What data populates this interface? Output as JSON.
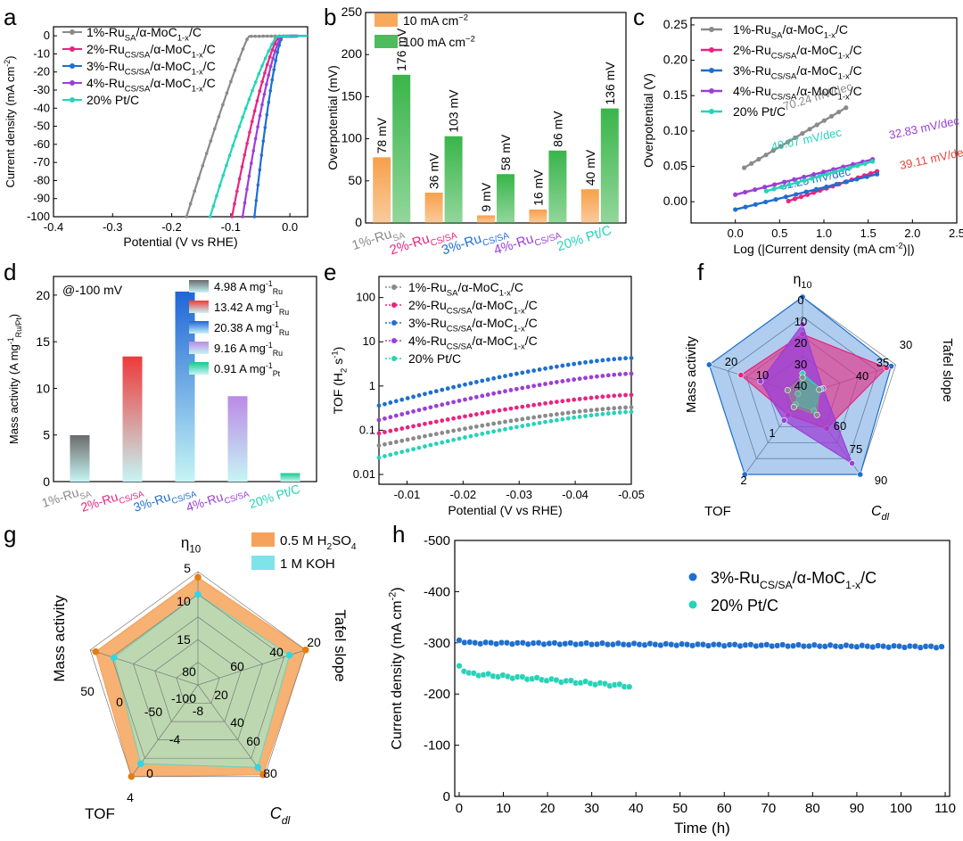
{
  "colors": {
    "ru1": "#8a8a8a",
    "ru2": "#e8247f",
    "ru3": "#1e6fd0",
    "ru4": "#9b3fd6",
    "pt": "#26d3b8",
    "orange": "#f7a04a",
    "green": "#39b54a",
    "acid": "#f5a35b",
    "alkaline": "#7fe3ea",
    "red": "#e8453c"
  },
  "panels": {
    "a": "a",
    "b": "b",
    "c": "c",
    "d": "d",
    "e": "e",
    "f": "f",
    "g": "g",
    "h": "h"
  },
  "legend_common": [
    {
      "pre": "1%-Ru",
      "sub": "SA",
      "post": "/α-MoC",
      "sub2": "1-x",
      "post2": "/C"
    },
    {
      "pre": "2%-Ru",
      "sub": "CS/SA",
      "post": "/α-MoC",
      "sub2": "1-x",
      "post2": "/C"
    },
    {
      "pre": "3%-Ru",
      "sub": "CS/SA",
      "post": "/α-MoC",
      "sub2": "1-x",
      "post2": "/C"
    },
    {
      "pre": "4%-Ru",
      "sub": "CS/SA",
      "post": "/α-MoC",
      "sub2": "1-x",
      "post2": "/C"
    },
    {
      "pre": "20% Pt/C",
      "sub": "",
      "post": "",
      "sub2": "",
      "post2": ""
    }
  ],
  "catalyst_labels": [
    {
      "pre": "1%-Ru",
      "sub": "SA"
    },
    {
      "pre": "2%-Ru",
      "sub": "CS/SA"
    },
    {
      "pre": "3%-Ru",
      "sub": "CS/SA"
    },
    {
      "pre": "4%-Ru",
      "sub": "CS/SA"
    },
    {
      "pre": "20% Pt/C",
      "sub": ""
    }
  ],
  "chart_data": [
    {
      "id": "a",
      "type": "line",
      "xlabel": "Potential (V vs RHE)",
      "ylabel": {
        "pre": "Current density (mA cm",
        "sup": "-2",
        "post": ")"
      },
      "xlim": [
        -0.4,
        0.03
      ],
      "ylim": [
        -100,
        5
      ],
      "xticks": [
        "-0.4",
        "-0.3",
        "-0.2",
        "-0.1",
        "0.0"
      ],
      "xtick_values": [
        -0.4,
        -0.3,
        -0.2,
        -0.1,
        0.0
      ],
      "yticks": [
        "0",
        "-10",
        "-20",
        "-30",
        "-40",
        "-50",
        "-60",
        "-70",
        "-80",
        "-90",
        "-100"
      ],
      "ytick_values": [
        0,
        -10,
        -20,
        -30,
        -40,
        -50,
        -60,
        -70,
        -80,
        -90,
        -100
      ],
      "series": [
        {
          "onset": -0.07,
          "end": -0.175,
          "k": 1.1
        },
        {
          "onset": -0.018,
          "end": -0.098,
          "k": 1.35
        },
        {
          "onset": -0.012,
          "end": -0.06,
          "k": 1.45
        },
        {
          "onset": -0.014,
          "end": -0.08,
          "k": 1.4
        },
        {
          "onset": -0.022,
          "end": -0.135,
          "k": 1.2
        }
      ]
    },
    {
      "id": "b",
      "type": "bar",
      "ylabel": "Overpotential (mV)",
      "ylim": [
        0,
        250
      ],
      "yticks": [
        "0",
        "50",
        "100",
        "150",
        "200",
        "250"
      ],
      "ytick_values": [
        0,
        50,
        100,
        150,
        200,
        250
      ],
      "legend": [
        {
          "pre": "10 mA cm",
          "sup": "−2"
        },
        {
          "pre": "100 mA cm",
          "sup": "−2"
        }
      ],
      "series": [
        {
          "values": [
            78,
            36,
            9,
            16,
            40
          ],
          "labels": [
            "78 mV",
            "36 mV",
            "9 mV",
            "16 mV",
            "40 mV"
          ]
        },
        {
          "values": [
            176,
            103,
            58,
            86,
            136
          ],
          "labels": [
            "176 mV",
            "103 mV",
            "58 mV",
            "86 mV",
            "136 mV"
          ]
        }
      ]
    },
    {
      "id": "c",
      "type": "line",
      "xlabel": {
        "pre": "Log (|Current density (mA cm",
        "sup": "-2",
        "post": ")|)"
      },
      "ylabel": "Overpotential (V)",
      "xlim": [
        -0.5,
        2.5
      ],
      "ylim": [
        -0.03,
        0.26
      ],
      "xticks": [
        "0.0",
        "0.5",
        "1.0",
        "1.5",
        "2.0",
        "2.5"
      ],
      "xtick_values": [
        0,
        0.5,
        1.0,
        1.5,
        2.0,
        2.5
      ],
      "yticks": [
        "0.00",
        "0.05",
        "0.10",
        "0.15",
        "0.20",
        "0.25"
      ],
      "ytick_values": [
        0,
        0.05,
        0.1,
        0.15,
        0.2,
        0.25
      ],
      "series": [
        {
          "x0": 0.1,
          "x1": 1.25,
          "y0": 0.048,
          "y1": 0.133,
          "slope_label": "70.24 mV/dec"
        },
        {
          "x0": 0.6,
          "x1": 1.6,
          "y0": 0.001,
          "y1": 0.043,
          "slope_label": "39.11 mV/dec"
        },
        {
          "x0": 0.0,
          "x1": 1.6,
          "y0": -0.011,
          "y1": 0.039,
          "slope_label": "31.25 mV/dec"
        },
        {
          "x0": 0.0,
          "x1": 1.55,
          "y0": 0.01,
          "y1": 0.06,
          "slope_label": "32.83 mV/dec"
        },
        {
          "x0": 0.35,
          "x1": 1.55,
          "y0": 0.015,
          "y1": 0.057,
          "slope_label": "40.07 mV/dec"
        }
      ]
    },
    {
      "id": "d",
      "type": "bar",
      "ylabel": {
        "pre": "Mass activity (A mg",
        "sup": "-1",
        "sub": "Ru/Pt",
        "post": ")"
      },
      "annotation": "@-100 mV",
      "ylim": [
        0,
        22
      ],
      "yticks": [
        "0",
        "5",
        "10",
        "15",
        "20"
      ],
      "ytick_values": [
        0,
        5,
        10,
        15,
        20
      ],
      "values": [
        4.98,
        13.42,
        20.38,
        9.16,
        0.91
      ],
      "legend": [
        {
          "val": "4.98 A mg",
          "sup": "-1",
          "sub": "Ru"
        },
        {
          "val": "13.42 A mg",
          "sup": "-1",
          "sub": "Ru"
        },
        {
          "val": "20.38 A mg",
          "sup": "-1",
          "sub": "Ru"
        },
        {
          "val": "9.16 A mg",
          "sup": "-1",
          "sub": "Ru"
        },
        {
          "val": "0.91 A mg",
          "sup": "-1",
          "sub": "Pt"
        }
      ]
    },
    {
      "id": "e",
      "type": "line",
      "xlabel": "Potential (V vs RHE)",
      "ylabel": {
        "pre": "TOF (H",
        "sub": "2",
        "post": " s",
        "sup": "-1",
        "post2": ")"
      },
      "xlim": [
        -0.005,
        -0.05
      ],
      "ylim_log": [
        0.006,
        300
      ],
      "xticks": [
        "-0.01",
        "-0.02",
        "-0.03",
        "-0.04",
        "-0.05"
      ],
      "xtick_values": [
        -0.01,
        -0.02,
        -0.03,
        -0.04,
        -0.05
      ],
      "yticks": [
        "0.01",
        "0.1",
        "1",
        "10",
        "100"
      ],
      "ytick_values": [
        0.01,
        0.1,
        1,
        10,
        100
      ],
      "series": [
        {
          "y0": 0.045,
          "y1": 0.33
        },
        {
          "y0": 0.085,
          "y1": 0.63
        },
        {
          "y0": 0.36,
          "y1": 4.3
        },
        {
          "y0": 0.17,
          "y1": 1.9
        },
        {
          "y0": 0.024,
          "y1": 0.26
        }
      ]
    },
    {
      "id": "f",
      "type": "radar",
      "axes": [
        "η",
        "Tafel slope",
        "Cdl",
        "TOF",
        "Mass activity"
      ],
      "axis_label_eta": {
        "pre": "η",
        "sub": "10"
      },
      "axis_label_tafel": "Tafel slope",
      "axis_label_cdl": {
        "pre": "C",
        "sub": "dl"
      },
      "axis_label_tof": "TOF",
      "axis_label_mass": "Mass activity",
      "tick_labels": {
        "eta": [
          "0",
          "10",
          "20",
          "30",
          "40"
        ],
        "tafel": [
          "30",
          "35",
          "40"
        ],
        "cdl": [
          "90",
          "75",
          "60"
        ],
        "tof": [
          "2",
          "1"
        ],
        "mass": [
          "20",
          "10"
        ]
      },
      "series": [
        {
          "r": [
            0.18,
            0.18,
            0.25,
            0.15,
            0.16
          ]
        },
        {
          "r": [
            0.62,
            0.9,
            0.42,
            0.25,
            0.66
          ]
        },
        {
          "r": [
            1.0,
            0.95,
            1.0,
            1.0,
            1.0
          ]
        },
        {
          "r": [
            0.72,
            0.22,
            0.86,
            0.32,
            0.45
          ]
        },
        {
          "r": [
            0.22,
            0.2,
            0.2,
            0.12,
            0.05
          ]
        }
      ]
    },
    {
      "id": "g",
      "type": "radar",
      "legend": [
        {
          "pre": "0.5 M H",
          "sub": "2",
          "post": "SO",
          "sub2": "4"
        },
        {
          "pre": "1 M KOH",
          "sub": "",
          "post": "",
          "sub2": ""
        }
      ],
      "axis_label_eta": {
        "pre": "η",
        "sub": "10"
      },
      "axis_label_tafel": "Tafel slope",
      "axis_label_cdl": {
        "pre": "C",
        "sub": "dl"
      },
      "axis_label_tof": "TOF",
      "axis_label_mass": "Mass activity",
      "tick_labels": {
        "eta": [
          "5",
          "10",
          "15",
          "80"
        ],
        "tafel": [
          "20",
          "40",
          "60"
        ],
        "cdl": [
          "80",
          "60",
          "40",
          "20"
        ],
        "tof": [
          "4",
          "0",
          "-4",
          "-8"
        ],
        "mass": [
          "50",
          "0",
          "-50",
          "-100"
        ]
      },
      "series": [
        {
          "r": [
            0.95,
            1.0,
            0.98,
            1.0,
            0.95
          ]
        },
        {
          "r": [
            0.8,
            0.85,
            0.9,
            0.86,
            0.78
          ]
        }
      ]
    },
    {
      "id": "h",
      "type": "scatter",
      "xlabel": "Time (h)",
      "ylabel": {
        "pre": "Current density (mA cm",
        "sup": "-2",
        "post": ")"
      },
      "xlim": [
        -1,
        111
      ],
      "ylim": [
        0,
        -500
      ],
      "xticks": [
        "0",
        "10",
        "20",
        "30",
        "40",
        "50",
        "60",
        "70",
        "80",
        "90",
        "100",
        "110"
      ],
      "xtick_values": [
        0,
        10,
        20,
        30,
        40,
        50,
        60,
        70,
        80,
        90,
        100,
        110
      ],
      "yticks": [
        "0",
        "-100",
        "-200",
        "-300",
        "-400",
        "-500"
      ],
      "ytick_values": [
        0,
        -100,
        -200,
        -300,
        -400,
        -500
      ],
      "legend": [
        {
          "pre": "3%-Ru",
          "sub": "CS/SA",
          "post": "/α-MoC",
          "sub2": "1-x",
          "post2": "/C"
        },
        {
          "pre": "20% Pt/C",
          "sub": "",
          "post": "",
          "sub2": "",
          "post2": ""
        }
      ],
      "series": [
        {
          "t_end": 110,
          "start": -305,
          "level": -300,
          "end": -292
        },
        {
          "t_end": 39,
          "start": -255,
          "level": -240,
          "end": -215
        }
      ]
    }
  ]
}
